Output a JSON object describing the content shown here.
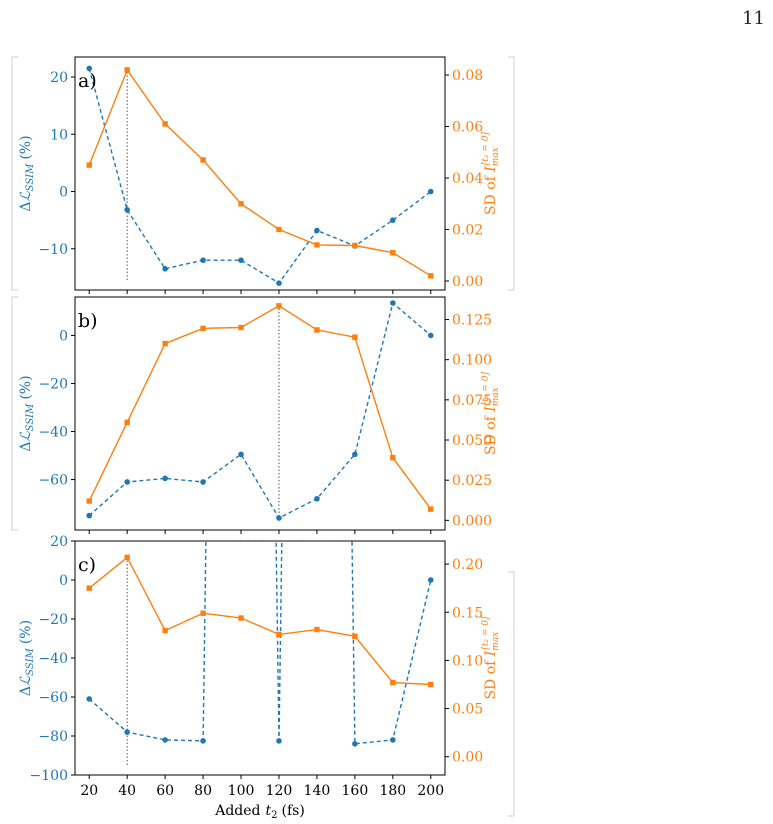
{
  "page_number": "11",
  "colors": {
    "blue": "#1f77b4",
    "orange": "#ff7f0e",
    "axis": "#000000",
    "marker_line": "#555555"
  },
  "x_axis": {
    "label": "Added",
    "label_math": "t",
    "label_sub": "2",
    "label_unit": "(fs)",
    "ticks": [
      "20",
      "40",
      "60",
      "80",
      "100",
      "120",
      "140",
      "160",
      "180",
      "200"
    ]
  },
  "left_axis_label": {
    "prefix": "Δ",
    "symbol": "ℒ",
    "sub": "SSIM",
    "unit": "(%)"
  },
  "right_axis_label": {
    "prefix": "SD of ",
    "symbol": "I",
    "sub": "max",
    "sup": "[t₂ = 0]"
  },
  "chart_data": [
    {
      "panel_label": "a)",
      "type": "line",
      "x": [
        20,
        40,
        60,
        80,
        100,
        120,
        140,
        160,
        180,
        200
      ],
      "left_axis": {
        "ylim": [
          -17.2,
          23.5
        ],
        "ticks": [
          "20",
          "10",
          "0",
          "−10"
        ],
        "tick_values": [
          20,
          10,
          0,
          -10
        ]
      },
      "right_axis": {
        "ylim": [
          -0.0035,
          0.087
        ],
        "ticks": [
          "0.08",
          "0.06",
          "0.04",
          "0.02",
          "0.00"
        ],
        "tick_values": [
          0.08,
          0.06,
          0.04,
          0.02,
          0.0
        ]
      },
      "series": [
        {
          "axis": "left",
          "color": "#1f77b4",
          "style": "dashed",
          "marker": "circle",
          "values": [
            21.5,
            -3.2,
            -13.5,
            -12.0,
            -12.0,
            -16.0,
            -6.8,
            -9.5,
            -5.0,
            0.0
          ]
        },
        {
          "axis": "right",
          "color": "#ff7f0e",
          "style": "solid",
          "marker": "square",
          "values": [
            0.045,
            0.082,
            0.061,
            0.047,
            0.03,
            0.02,
            0.014,
            0.0138,
            0.011,
            0.002
          ]
        }
      ],
      "vline_x": 40
    },
    {
      "panel_label": "b)",
      "type": "line",
      "x": [
        20,
        40,
        60,
        80,
        100,
        120,
        140,
        160,
        180,
        200
      ],
      "left_axis": {
        "ylim": [
          -81,
          16
        ],
        "ticks": [
          "0",
          "−20",
          "−40",
          "−60"
        ],
        "tick_values": [
          0,
          -20,
          -40,
          -60
        ]
      },
      "right_axis": {
        "ylim": [
          -0.006,
          0.139
        ],
        "ticks": [
          "0.125",
          "0.100",
          "0.075",
          "0.050",
          "0.025",
          "0.000"
        ],
        "tick_values": [
          0.125,
          0.1,
          0.075,
          0.05,
          0.025,
          0.0
        ]
      },
      "series": [
        {
          "axis": "left",
          "color": "#1f77b4",
          "style": "dashed",
          "marker": "circle",
          "values": [
            -75.0,
            -61.0,
            -59.5,
            -61.0,
            -49.5,
            -76.0,
            -68.0,
            -49.5,
            13.5,
            0.0
          ]
        },
        {
          "axis": "right",
          "color": "#ff7f0e",
          "style": "solid",
          "marker": "square",
          "values": [
            0.012,
            0.061,
            0.11,
            0.1195,
            0.12,
            0.1335,
            0.1185,
            0.114,
            0.039,
            0.007
          ]
        }
      ],
      "vline_x": 120
    },
    {
      "panel_label": "c)",
      "type": "line",
      "x": [
        20,
        40,
        60,
        80,
        100,
        120,
        140,
        160,
        180,
        200
      ],
      "left_axis": {
        "ylim": [
          -100,
          20
        ],
        "ticks": [
          "20",
          "0",
          "−20",
          "−40",
          "−60",
          "−80",
          "−100"
        ],
        "tick_values": [
          20,
          0,
          -20,
          -40,
          -60,
          -80,
          -100
        ]
      },
      "right_axis": {
        "ylim": [
          -0.019,
          0.224
        ],
        "ticks": [
          "0.20",
          "0.15",
          "0.10",
          "0.05",
          "0.00"
        ],
        "tick_values": [
          0.2,
          0.15,
          0.1,
          0.05,
          0.0
        ]
      },
      "series": [
        {
          "axis": "left",
          "color": "#1f77b4",
          "style": "dashed",
          "marker": "circle",
          "x": [
            20,
            40,
            60,
            80,
            81.5,
            118.5,
            120,
            121.5,
            158.5,
            160,
            180,
            200
          ],
          "values": [
            -61.0,
            -78.0,
            -82.0,
            -82.5,
            20.0,
            20.0,
            -82.5,
            20.0,
            20.0,
            -84.0,
            -82.0,
            0.0
          ],
          "marker_mask": [
            true,
            true,
            true,
            true,
            false,
            false,
            true,
            false,
            false,
            true,
            true,
            true
          ]
        },
        {
          "axis": "right",
          "color": "#ff7f0e",
          "style": "solid",
          "marker": "square",
          "values": [
            0.175,
            0.207,
            0.131,
            0.149,
            0.144,
            0.127,
            0.132,
            0.125,
            0.077,
            0.075
          ]
        }
      ],
      "vline_x": 40
    }
  ]
}
